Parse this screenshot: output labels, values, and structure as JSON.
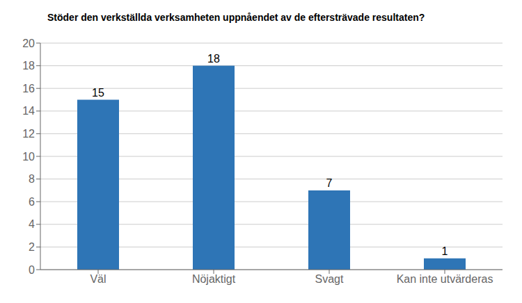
{
  "chart_data": {
    "type": "bar",
    "title": "Stöder den verkställda verksamheten uppnåendet av de eftersträvade resultaten?",
    "categories": [
      "Väl",
      "Nöjaktigt",
      "Svagt",
      "Kan inte utvärderas"
    ],
    "values": [
      15,
      18,
      7,
      1
    ],
    "color": "#2E75B6",
    "ylim": [
      0,
      20
    ],
    "yticks": [
      0,
      2,
      4,
      6,
      8,
      10,
      12,
      14,
      16,
      18,
      20
    ],
    "grid": true,
    "data_labels": true
  }
}
